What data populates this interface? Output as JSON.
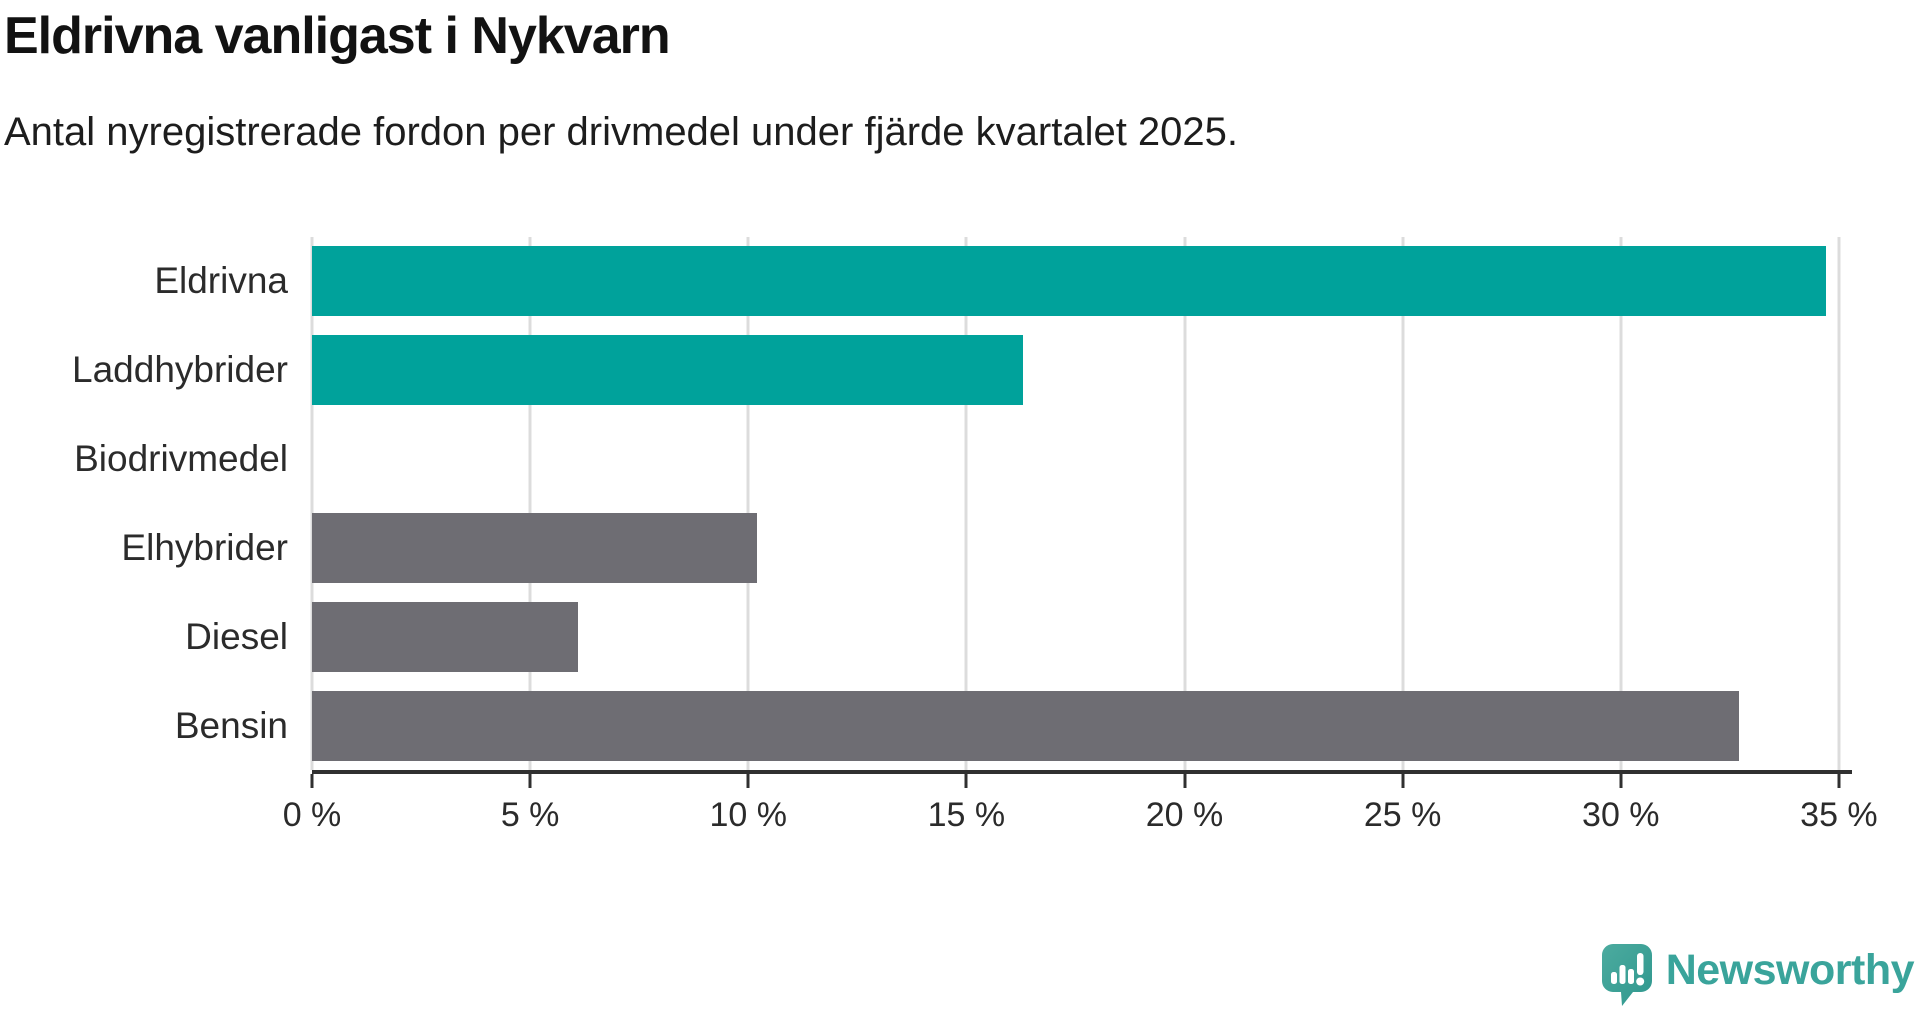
{
  "header": {
    "title": "Eldrivna vanligast i Nykvarn",
    "subtitle": "Antal nyregistrerade fordon per drivmedel under fjärde kvartalet 2025."
  },
  "chart_data": {
    "type": "bar",
    "orientation": "horizontal",
    "title": "Eldrivna vanligast i Nykvarn",
    "subtitle": "Antal nyregistrerade fordon per drivmedel under fjärde kvartalet 2025.",
    "categories": [
      "Eldrivna",
      "Laddhybrider",
      "Biodrivmedel",
      "Elhybrider",
      "Diesel",
      "Bensin"
    ],
    "values": [
      34.7,
      16.3,
      0,
      10.2,
      6.1,
      32.7
    ],
    "unit": "%",
    "bar_colors": [
      "#00a29b",
      "#00a29b",
      "#6e6d73",
      "#6e6d73",
      "#6e6d73",
      "#6e6d73"
    ],
    "x_ticks": [
      "0 %",
      "5 %",
      "10 %",
      "15 %",
      "20 %",
      "25 %",
      "30 %",
      "35 %"
    ],
    "x_tick_values": [
      0,
      5,
      10,
      15,
      20,
      25,
      30,
      35
    ],
    "xlim": [
      0,
      35.3
    ],
    "grid": true,
    "legend": "none"
  },
  "colors": {
    "teal": "#00a29b",
    "gray": "#6e6d73",
    "gridline": "#dcdcdc",
    "axis": "#303030",
    "logo_teal": "#3aa49b"
  },
  "footer": {
    "brand": "Newsworthy"
  }
}
